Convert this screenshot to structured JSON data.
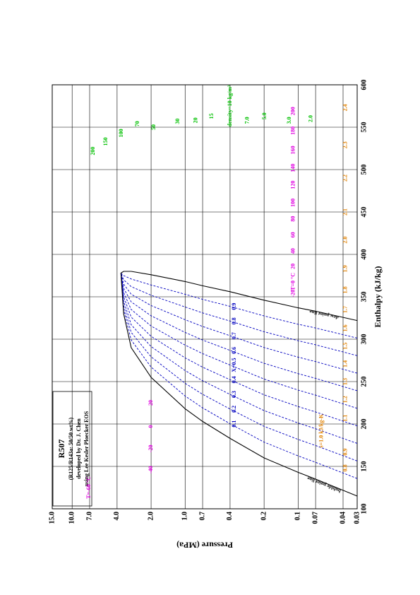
{
  "chart_data": {
    "type": "ph",
    "title": "R507",
    "subtitle": [
      "(R125/R143a: 50/50 wt%)",
      "developed by Dr. J. Chen",
      "using Lee Kesler Ploecker EOS"
    ],
    "xlabel": "Enthalpy (kJ/kg)",
    "ylabel": "Pressure (MPa)",
    "xlim": [
      100,
      600
    ],
    "xticks": [
      100,
      150,
      200,
      250,
      300,
      350,
      400,
      450,
      500,
      550,
      600
    ],
    "ylim": [
      0.03,
      15
    ],
    "ylog": true,
    "yticks": [
      {
        "value": 15,
        "label": "15.0"
      },
      {
        "value": 10,
        "label": "10.0"
      },
      {
        "value": 7,
        "label": "7.0"
      },
      {
        "value": 4,
        "label": "4.0"
      },
      {
        "value": 2,
        "label": "2.0"
      },
      {
        "value": 1,
        "label": "1.0"
      },
      0.7,
      0.4,
      0.2,
      0.1,
      0.07,
      0.04,
      0.03
    ],
    "grid": true,
    "pressures": [
      0.03,
      0.07,
      0.1,
      0.2,
      0.4,
      0.7,
      1.0,
      2.0,
      3.0,
      3.5,
      3.7
    ],
    "series": [
      {
        "name": "bubble point line",
        "color": "#000000",
        "values": [
          115,
          135,
          143,
          160,
          183,
          203,
          218,
          255,
          290,
          330,
          378
        ]
      },
      {
        "name": "dew point line",
        "color": "#000000",
        "values": [
          322,
          333,
          337,
          346,
          356,
          363,
          368,
          376,
          380,
          380,
          378
        ]
      }
    ],
    "qualities": {
      "color": "#0000c0",
      "values": [
        0.1,
        0.2,
        0.3,
        0.4,
        0.5,
        0.6,
        0.7,
        0.8,
        0.9
      ],
      "value_labels": [
        "0.1",
        "0.2",
        "0.3",
        "0.4",
        "X=0.5",
        "0.6",
        "0.7",
        "0.8",
        "0.9"
      ]
    },
    "isotherms": {
      "color": "#e000e0",
      "labels": [
        "T=-60 °C",
        "-40",
        "-20",
        "0",
        "20",
        "-20",
        "T=0 °C",
        "20",
        "40",
        "60",
        "80",
        "100",
        "120",
        "140",
        "160",
        "180",
        "200"
      ],
      "x": [
        125,
        146,
        171,
        197,
        225,
        354,
        368,
        386,
        404,
        423,
        442,
        461,
        482,
        502,
        523,
        546,
        569
      ],
      "y": [
        7.1,
        2.0,
        2.0,
        2.0,
        2.0,
        0.11,
        0.11,
        0.11,
        0.11,
        0.11,
        0.11,
        0.11,
        0.11,
        0.11,
        0.11,
        0.11,
        0.11
      ]
    },
    "isentropes": {
      "color": "#e08000",
      "labels": [
        "0.8",
        "0.9",
        "s=1.0 kJ/kg-K",
        "1.1",
        "1.2",
        "1.3",
        "1.4",
        "1.5",
        "1.6",
        "1.7",
        "1.8",
        "1.9",
        "2.0",
        "2.1",
        "2.2",
        "2.3",
        "2.4"
      ],
      "x": [
        148,
        167,
        192,
        207,
        229,
        250,
        271,
        292,
        313,
        335,
        358,
        383,
        417,
        450,
        490,
        529,
        573
      ],
      "y": [
        0.038,
        0.038,
        0.062,
        0.038,
        0.038,
        0.038,
        0.038,
        0.038,
        0.038,
        0.038,
        0.038,
        0.038,
        0.038,
        0.038,
        0.038,
        0.038,
        0.038
      ]
    },
    "isochores": {
      "color": "#00c000",
      "labels": [
        "200",
        "150",
        "100",
        "70",
        "50",
        "30",
        "20",
        "15",
        "density=10 kg/m³",
        "7.0",
        "5.0",
        "3.0",
        "2.0"
      ],
      "x": [
        522,
        533,
        543,
        554,
        550,
        557,
        558,
        563,
        575,
        558,
        563,
        558,
        560
      ],
      "y": [
        6.5,
        5.0,
        3.66,
        2.63,
        1.89,
        1.16,
        0.8,
        0.58,
        0.4,
        0.28,
        0.197,
        0.119,
        0.077
      ]
    }
  }
}
